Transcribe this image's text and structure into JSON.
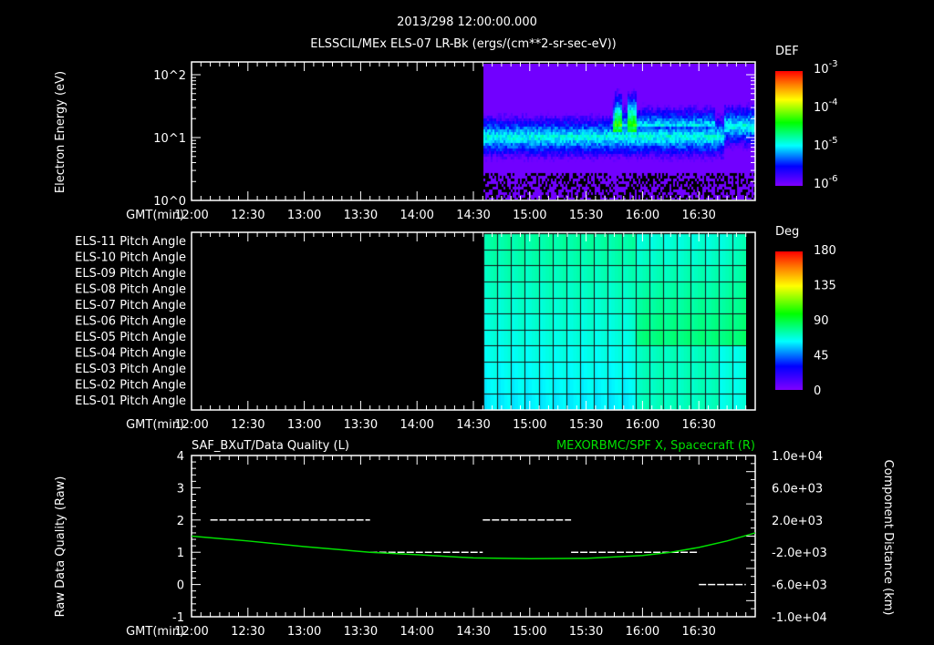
{
  "header": {
    "date_time": "2013/298 12:00:00.000",
    "subtitle": "ELSSCIL/MEx ELS-07 LR-Bk  (ergs/(cm**2-sr-sec-eV))"
  },
  "colors": {
    "line": "#00e000",
    "axis": "#ffffff",
    "background": "#000000"
  },
  "chart_data": [
    {
      "type": "heatmap",
      "title": "ELSSCIL/MEx ELS-07 LR-Bk (ergs/(cm**2-sr-sec-eV))",
      "ylabel": "Electron Energy (eV)",
      "xlabel": "GMT(min)",
      "x_ticks": [
        "12:00",
        "12:30",
        "13:00",
        "13:30",
        "14:00",
        "14:30",
        "15:00",
        "15:30",
        "16:00",
        "16:30"
      ],
      "y_scale": "log",
      "y_ticks": [
        "10^0",
        "10^1",
        "10^2"
      ],
      "ylim": [
        1,
        160
      ],
      "data_start": "14:35",
      "colorbar": {
        "label": "DEF",
        "ticks": [
          "10^-6",
          "10^-5",
          "10^-4",
          "10^-3"
        ]
      }
    },
    {
      "type": "heatmap",
      "xlabel": "GMT(min)",
      "x_ticks": [
        "12:00",
        "12:30",
        "13:00",
        "13:30",
        "14:00",
        "14:30",
        "15:00",
        "15:30",
        "16:00",
        "16:30"
      ],
      "rows": [
        "ELS-11 Pitch Angle",
        "ELS-10 Pitch Angle",
        "ELS-09 Pitch Angle",
        "ELS-08 Pitch Angle",
        "ELS-07 Pitch Angle",
        "ELS-06 Pitch Angle",
        "ELS-05 Pitch Angle",
        "ELS-04 Pitch Angle",
        "ELS-03 Pitch Angle",
        "ELS-02 Pitch Angle",
        "ELS-01 Pitch Angle"
      ],
      "data_start": "14:35",
      "colorbar": {
        "label": "Deg",
        "ticks": [
          "0",
          "45",
          "90",
          "135",
          "180"
        ],
        "range": [
          0,
          180
        ]
      }
    },
    {
      "type": "line",
      "title_left": "SAF_BXuT/Data Quality (L)",
      "title_right": "MEXORBMC/SPF X, Spacecraft (R)",
      "ylabel_left": "Raw Data Quality (Raw)",
      "ylabel_right": "Component Distance (km)",
      "xlabel": "GMT(min)",
      "x_ticks": [
        "12:00",
        "12:30",
        "13:00",
        "13:30",
        "14:00",
        "14:30",
        "15:00",
        "15:30",
        "16:00",
        "16:30"
      ],
      "xlim_min": [
        0,
        300
      ],
      "ylim_left": [
        -1,
        4
      ],
      "y_ticks_left": [
        "-1",
        "0",
        "1",
        "2",
        "3",
        "4"
      ],
      "ylim_right": [
        -10000,
        10000
      ],
      "y_ticks_right": [
        "-1.0e+04",
        "-6.0e+03",
        "-2.0e+03",
        "2.0e+03",
        "6.0e+03",
        "1.0e+04"
      ],
      "series": [
        {
          "name": "Data Quality",
          "axis": "left",
          "segments": [
            {
              "x0": 10,
              "x1": 95,
              "y": 2
            },
            {
              "x0": 95,
              "x1": 155,
              "y": 1
            },
            {
              "x0": 155,
              "x1": 202,
              "y": 2
            },
            {
              "x0": 202,
              "x1": 270,
              "y": 1
            },
            {
              "x0": 270,
              "x1": 295,
              "y": 0
            }
          ]
        },
        {
          "name": "SPF X Spacecraft",
          "axis": "right",
          "x": [
            0,
            30,
            60,
            95,
            120,
            150,
            180,
            210,
            240,
            255,
            270,
            285,
            300
          ],
          "y": [
            0,
            -600,
            -1300,
            -2000,
            -2300,
            -2700,
            -2800,
            -2750,
            -2400,
            -2000,
            -1400,
            -600,
            400
          ]
        }
      ]
    }
  ]
}
